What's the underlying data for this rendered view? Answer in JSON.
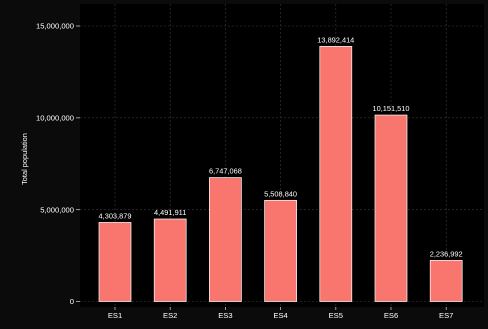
{
  "chart_data": {
    "type": "bar",
    "title": "",
    "xlabel": "",
    "ylabel": "Total population",
    "categories": [
      "ES1",
      "ES2",
      "ES3",
      "ES4",
      "ES5",
      "ES6",
      "ES7"
    ],
    "values": [
      4303879,
      4491911,
      6747068,
      5508840,
      13892414,
      10151510,
      2236992
    ],
    "value_labels": [
      "4,303,879",
      "4,491,911",
      "6,747,068",
      "5,508,840",
      "13,892,414",
      "10,151,510",
      "2,236,992"
    ],
    "ylim": [
      0,
      15000000
    ],
    "yticks": [
      0,
      5000000,
      10000000,
      15000000
    ],
    "ytick_labels": [
      "0",
      "5,000,000",
      "10,000,000",
      "15,000,000"
    ],
    "grid": true,
    "legend": "none"
  },
  "colors": {
    "background": "#0b0b0b",
    "panel": "#000000",
    "bar_fill": "#f8766d",
    "bar_stroke": "#ffffff",
    "text": "#ffffff",
    "grid": "#3a3a3a",
    "axis": "#bdbdbd"
  }
}
